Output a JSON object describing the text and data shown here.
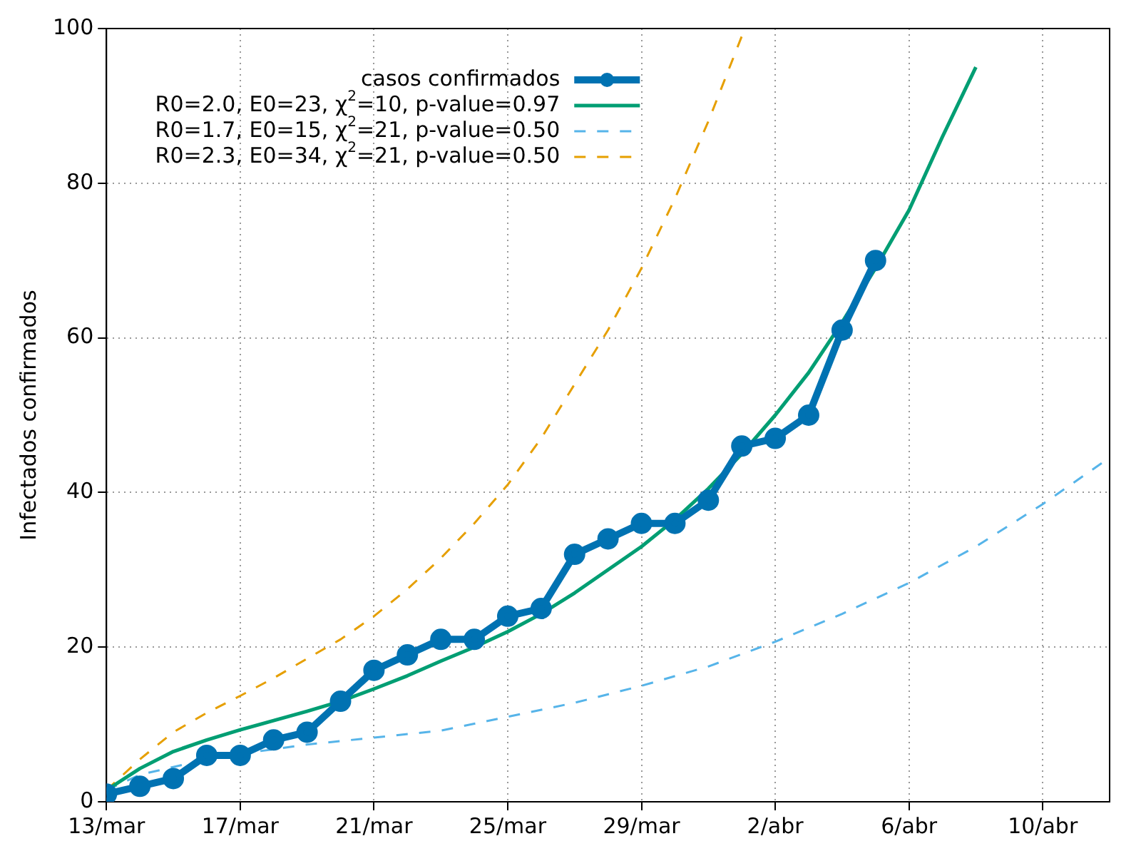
{
  "chart_data": {
    "type": "line",
    "ylabel": "Infectados confirmados",
    "xlim": [
      "--03-13",
      "--04-12"
    ],
    "ylim": [
      0,
      100
    ],
    "xticks": [
      {
        "value": "--03-13",
        "label": "13/mar"
      },
      {
        "value": "--03-17",
        "label": "17/mar"
      },
      {
        "value": "--03-21",
        "label": "21/mar"
      },
      {
        "value": "--03-25",
        "label": "25/mar"
      },
      {
        "value": "--03-29",
        "label": "29/mar"
      },
      {
        "value": "--04-02",
        "label": "2/abr"
      },
      {
        "value": "--04-06",
        "label": "6/abr"
      },
      {
        "value": "--04-10",
        "label": "10/abr"
      }
    ],
    "yticks": [
      0,
      20,
      40,
      60,
      80,
      100
    ],
    "grid": true,
    "legend": "top left",
    "series": [
      {
        "name": "casos confirmados",
        "color": "#0072b2",
        "marker": "circle",
        "line_style": "solid",
        "x": [
          "--03-13",
          "--03-14",
          "--03-15",
          "--03-16",
          "--03-17",
          "--03-18",
          "--03-19",
          "--03-20",
          "--03-21",
          "--03-22",
          "--03-23",
          "--03-24",
          "--03-25",
          "--03-26",
          "--03-27",
          "--03-28",
          "--03-29",
          "--03-30",
          "--03-31",
          "--04-01",
          "--04-02",
          "--04-03",
          "--04-04",
          "--04-05"
        ],
        "values": [
          1,
          2,
          3,
          6,
          6,
          8,
          9,
          13,
          17,
          19,
          21,
          21,
          24,
          25,
          32,
          34,
          36,
          36,
          39,
          46,
          47,
          50,
          61,
          70
        ]
      },
      {
        "name": "R0=2.0, E0=23, χ$^{2}$=10, p-value=0.97",
        "color": "#009e73",
        "marker": "none",
        "line_style": "solid",
        "x": [
          "--03-13",
          "--03-14",
          "--03-15",
          "--03-16",
          "--03-17",
          "--03-18",
          "--03-19",
          "--03-20",
          "--03-21",
          "--03-22",
          "--03-23",
          "--03-24",
          "--03-25",
          "--03-26",
          "--03-27",
          "--03-28",
          "--03-29",
          "--03-30",
          "--03-31",
          "--04-01",
          "--04-02",
          "--04-03",
          "--04-04",
          "--04-05",
          "--04-06",
          "--04-07",
          "--04-08"
        ],
        "values": [
          1.5,
          4.3,
          6.5,
          8,
          9.3,
          10.5,
          11.7,
          13,
          14.6,
          16.3,
          18.2,
          20,
          22,
          24.3,
          27,
          30,
          33,
          36.5,
          40.5,
          45,
          50,
          55.5,
          62,
          69,
          76.5,
          86,
          95
        ]
      },
      {
        "name": "R0=1.7, E0=15, χ$^{2}$=21, p-value=0.50",
        "color": "#56b4e9",
        "marker": "none",
        "line_style": "dashed",
        "x": [
          "--03-13",
          "--03-14",
          "--03-15",
          "--03-16",
          "--03-17",
          "--03-18",
          "--03-19",
          "--03-21",
          "--03-23",
          "--03-25",
          "--03-27",
          "--03-29",
          "--03-31",
          "--04-02",
          "--04-04",
          "--04-06",
          "--04-08",
          "--04-10",
          "--04-12"
        ],
        "values": [
          1.5,
          3.5,
          4.5,
          5.5,
          6.2,
          6.8,
          7.4,
          8.3,
          9.2,
          11,
          12.8,
          15,
          17.5,
          20.7,
          24.3,
          28.3,
          33,
          38.5,
          44.5
        ]
      },
      {
        "name": "R0=2.3, E0=34, χ$^{2}$=21, p-value=0.50",
        "color": "#e69f00",
        "marker": "none",
        "line_style": "dashed",
        "x": [
          "--03-13",
          "--03-14",
          "--03-15",
          "--03-16",
          "--03-17",
          "--03-18",
          "--03-19",
          "--03-20",
          "--03-21",
          "--03-22",
          "--03-23",
          "--03-24",
          "--03-25",
          "--03-26",
          "--03-27",
          "--03-28",
          "--03-29",
          "--03-30",
          "--03-31",
          "--04-01"
        ],
        "values": [
          1.5,
          5.5,
          9,
          11.5,
          13.7,
          16,
          18.5,
          21,
          24,
          27.5,
          31.5,
          36,
          41,
          47,
          54,
          61,
          69,
          78,
          88,
          99
        ]
      }
    ]
  }
}
